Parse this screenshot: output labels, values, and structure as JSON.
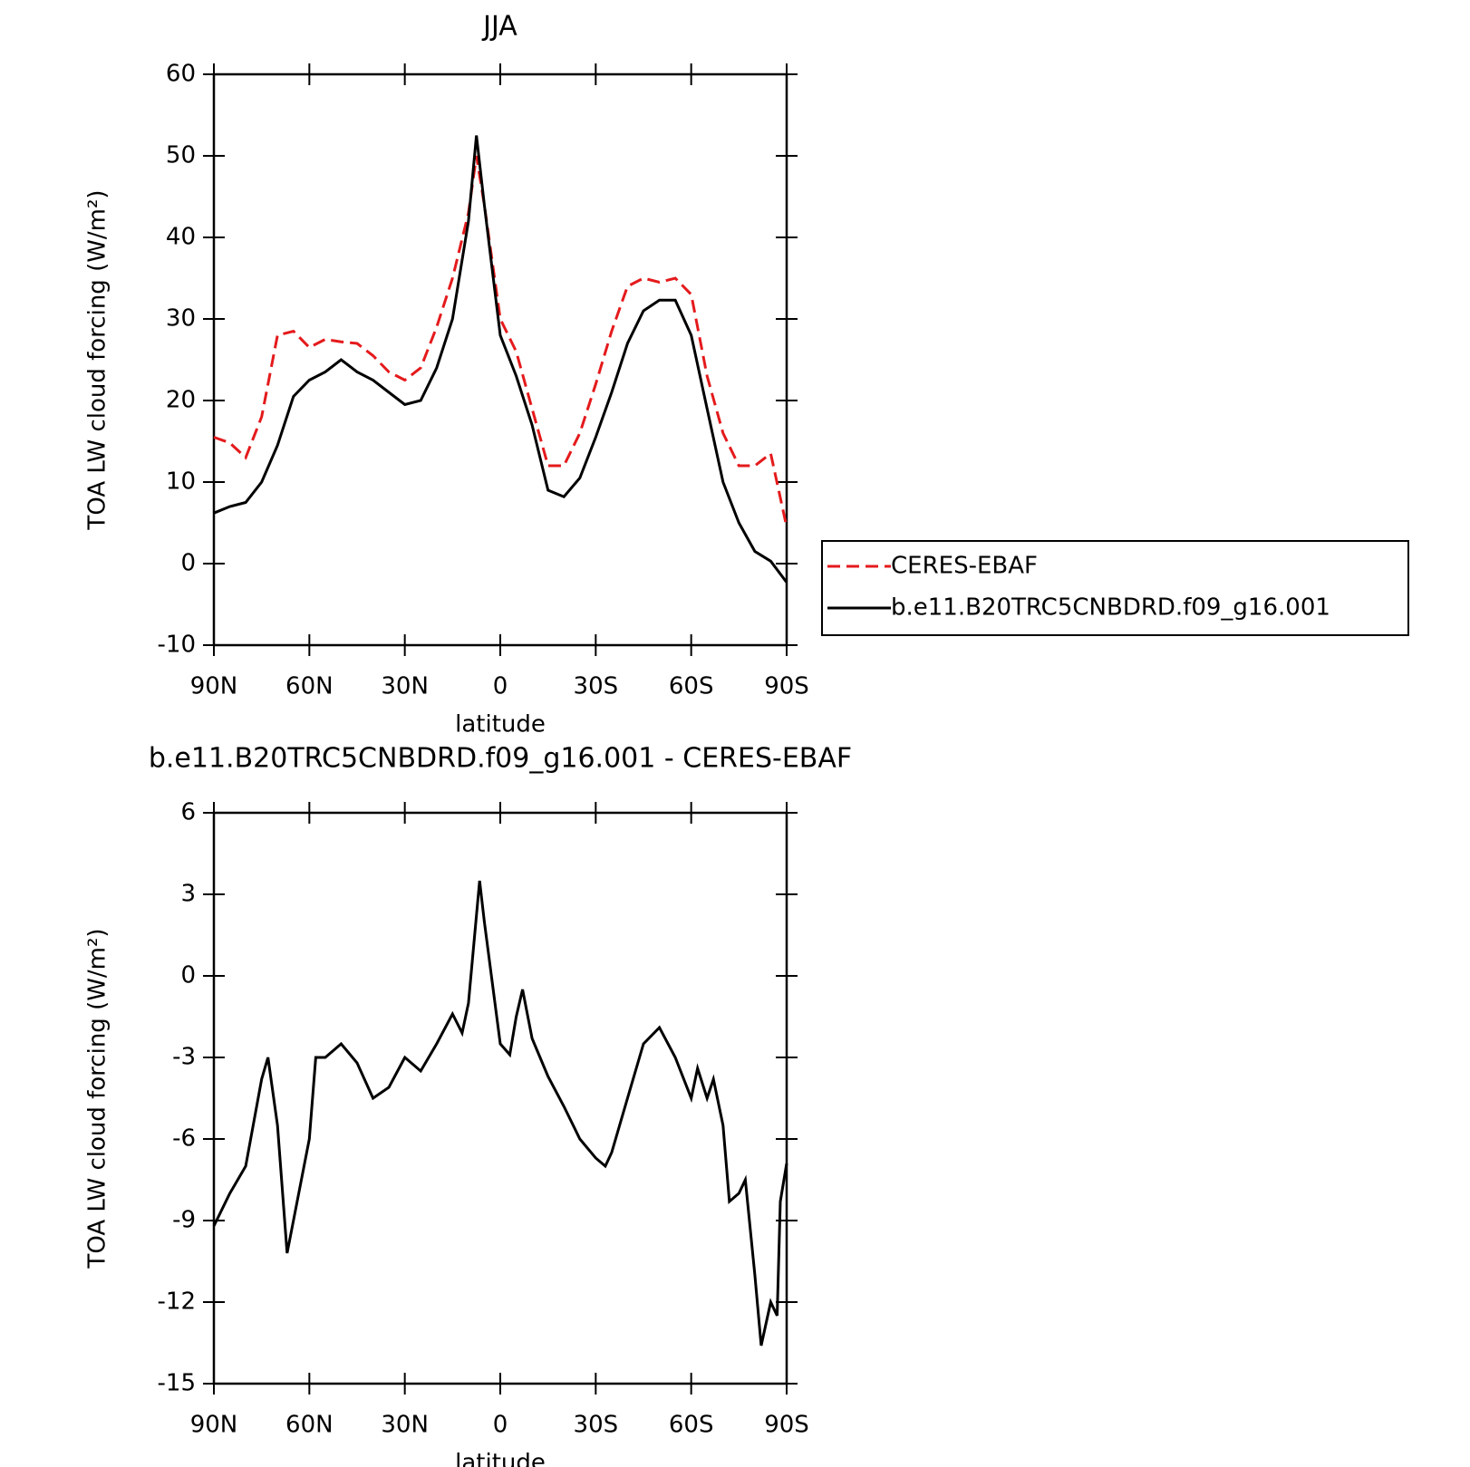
{
  "chart_data": [
    {
      "type": "line",
      "title": "JJA",
      "xlabel": "latitude",
      "ylabel": "TOA LW cloud forcing (W/m²)",
      "xlim": [
        90,
        -90
      ],
      "xticks": [
        {
          "value": 90,
          "label": "90N"
        },
        {
          "value": 60,
          "label": "60N"
        },
        {
          "value": 30,
          "label": "30N"
        },
        0,
        {
          "value": -30,
          "label": "30S"
        },
        {
          "value": -60,
          "label": "60S"
        },
        {
          "value": -90,
          "label": "90S"
        }
      ],
      "ylim": [
        -10,
        60
      ],
      "yticks": [
        -10,
        0,
        10,
        20,
        30,
        40,
        50,
        60
      ],
      "legend": "right",
      "x": [
        90,
        85,
        80,
        75,
        70,
        65,
        60,
        55,
        50,
        45,
        40,
        35,
        30,
        25,
        20,
        15,
        10,
        7.5,
        5,
        0,
        -5,
        -10,
        -15,
        -20,
        -25,
        -30,
        -35,
        -40,
        -45,
        -50,
        -55,
        -60,
        -65,
        -70,
        -75,
        -80,
        -85,
        -90
      ],
      "series": [
        {
          "name": "CERES-EBAF",
          "color": "#e41a1c",
          "dash": true,
          "values": [
            15.5,
            14.8,
            13,
            18,
            28,
            28.5,
            26.5,
            27.5,
            27.2,
            27,
            25.5,
            23.5,
            22.5,
            24,
            29,
            35,
            43,
            50,
            44,
            30,
            26,
            19,
            12,
            12,
            16,
            22,
            28.5,
            34,
            35,
            34.5,
            35,
            33,
            23,
            16,
            12,
            12,
            13.5,
            4.5
          ]
        },
        {
          "name": "b.e11.B20TRC5CNBDRD.f09_g16.001",
          "color": "#000000",
          "dash": false,
          "values": [
            6.2,
            7,
            7.5,
            10,
            14.5,
            20.5,
            22.5,
            23.5,
            25,
            23.5,
            22.5,
            21,
            19.5,
            20,
            24,
            30,
            42,
            52.5,
            44,
            28,
            23,
            17,
            9,
            8.2,
            10.5,
            15.5,
            21,
            27,
            31,
            32.3,
            32.3,
            28,
            19,
            10,
            5,
            1.5,
            0.3,
            -2.3
          ]
        }
      ]
    },
    {
      "type": "line",
      "title": "b.e11.B20TRC5CNBDRD.f09_g16.001 - CERES-EBAF",
      "xlabel": "latitude",
      "ylabel": "TOA LW cloud forcing (W/m²)",
      "xlim": [
        90,
        -90
      ],
      "xticks": [
        {
          "value": 90,
          "label": "90N"
        },
        {
          "value": 60,
          "label": "60N"
        },
        {
          "value": 30,
          "label": "30N"
        },
        0,
        {
          "value": -30,
          "label": "30S"
        },
        {
          "value": -60,
          "label": "60S"
        },
        {
          "value": -90,
          "label": "90S"
        }
      ],
      "ylim": [
        -15,
        6
      ],
      "yticks": [
        -15,
        -12,
        -9,
        -6,
        -3,
        0,
        3,
        6
      ],
      "x": [
        90,
        85,
        80,
        75,
        73,
        70,
        67,
        65,
        60,
        58,
        55,
        50,
        45,
        40,
        35,
        30,
        25,
        20,
        15,
        12,
        10,
        6.5,
        5,
        0,
        -3,
        -5,
        -7,
        -10,
        -15,
        -20,
        -25,
        -30,
        -33,
        -35,
        -40,
        -45,
        -50,
        -55,
        -60,
        -62,
        -65,
        -67,
        -70,
        -72,
        -75,
        -77,
        -80,
        -82,
        -85,
        -87,
        -88,
        -90
      ],
      "series": [
        {
          "color": "#000000",
          "dash": false,
          "values": [
            -9.2,
            -8,
            -7,
            -3.8,
            -3,
            -5.5,
            -10.2,
            -9,
            -6,
            -3,
            -3,
            -2.5,
            -3.2,
            -4.5,
            -4.1,
            -3,
            -3.5,
            -2.5,
            -1.4,
            -2.1,
            -1,
            3.5,
            2,
            -2.5,
            -2.9,
            -1.5,
            -0.5,
            -2.3,
            -3.7,
            -4.8,
            -6,
            -6.7,
            -7,
            -6.5,
            -4.5,
            -2.5,
            -1.9,
            -3,
            -4.5,
            -3.4,
            -4.5,
            -3.8,
            -5.5,
            -8.3,
            -8,
            -7.5,
            -11,
            -13.6,
            -12,
            -12.5,
            -8.3,
            -6.9
          ]
        }
      ]
    }
  ]
}
